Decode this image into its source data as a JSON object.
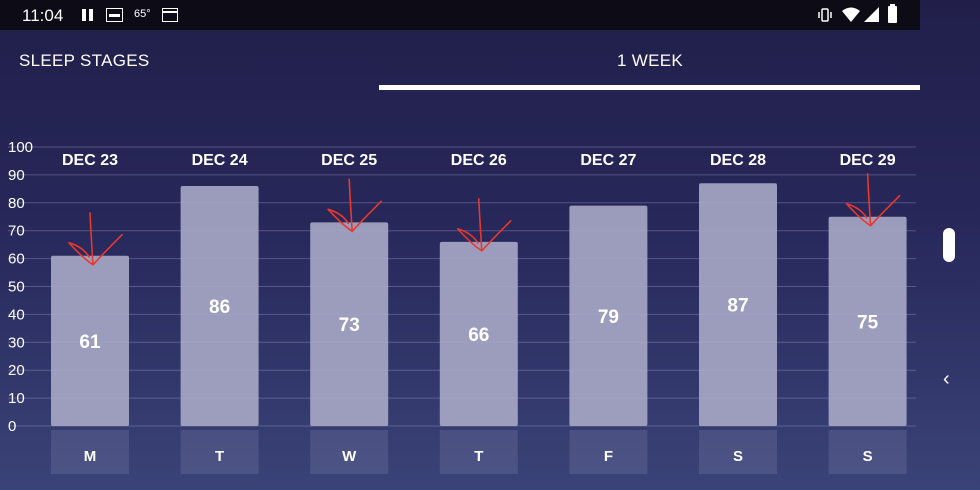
{
  "status_bar": {
    "time": "11:04",
    "temperature": "65°",
    "icons": [
      "pause-icon",
      "image-icon",
      "calendar-icon",
      "vibrate-icon",
      "wifi-icon",
      "signal-icon",
      "battery-icon"
    ]
  },
  "tabs": {
    "left_label": "SLEEP STAGES",
    "right_label": "1 WEEK",
    "active": "1 WEEK"
  },
  "colors": {
    "bar": "#a8a9c7",
    "annotation": "#e8382b",
    "background_top": "#211f4a",
    "background_bottom": "#3a4377"
  },
  "chart_data": {
    "type": "bar",
    "categories": [
      "M",
      "T",
      "W",
      "T",
      "F",
      "S",
      "S"
    ],
    "dates": [
      "DEC 23",
      "DEC 24",
      "DEC 25",
      "DEC 26",
      "DEC 27",
      "DEC 28",
      "DEC 29"
    ],
    "values": [
      61,
      86,
      73,
      66,
      79,
      87,
      75
    ],
    "yticks": [
      0,
      10,
      20,
      30,
      40,
      50,
      60,
      70,
      80,
      90,
      100
    ],
    "ylim": [
      0,
      100
    ],
    "grid": true,
    "annotated_days": [
      "DEC 23",
      "DEC 25",
      "DEC 26",
      "DEC 29"
    ],
    "annotation": "red hand-drawn arrows pointing down onto bars"
  }
}
